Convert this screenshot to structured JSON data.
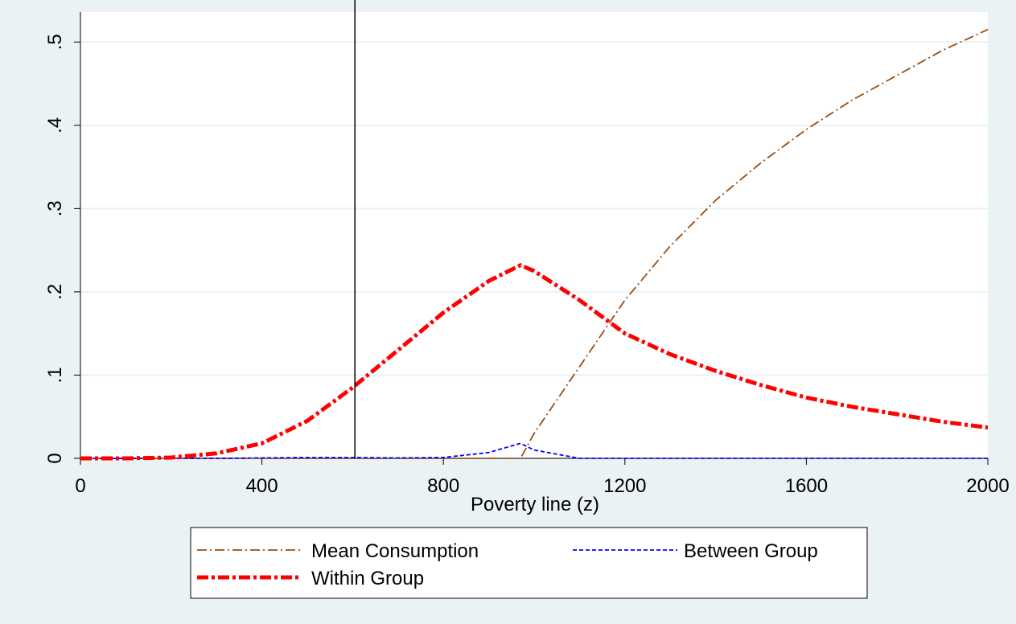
{
  "chart_data": {
    "type": "line",
    "x_label": "Poverty line (z)",
    "x": [
      0,
      100,
      200,
      300,
      400,
      500,
      600,
      700,
      800,
      900,
      970,
      1000,
      1100,
      1200,
      1300,
      1400,
      1500,
      1600,
      1700,
      1800,
      1900,
      2000
    ],
    "series": [
      {
        "name": "Mean Consumption",
        "color": "#9a4d10",
        "style": "dash-dot",
        "values": [
          0,
          0,
          0,
          0,
          0,
          0,
          0,
          0,
          0,
          0,
          0,
          0.03,
          0.11,
          0.19,
          0.255,
          0.31,
          0.355,
          0.395,
          0.43,
          0.46,
          0.49,
          0.515
        ]
      },
      {
        "name": "Between Group",
        "color": "#0000ff",
        "style": "dashed",
        "values": [
          0,
          0,
          0,
          0,
          0.0005,
          0.001,
          0.001,
          0.0005,
          0.001,
          0.007,
          0.018,
          0.01,
          0,
          0,
          0,
          0,
          0,
          0,
          0,
          0,
          0,
          0
        ]
      },
      {
        "name": "Within Group",
        "color": "#ff0000",
        "style": "thick-dash-dot",
        "values": [
          0,
          0,
          0.001,
          0.006,
          0.018,
          0.045,
          0.085,
          0.13,
          0.175,
          0.213,
          0.232,
          0.225,
          0.19,
          0.15,
          0.125,
          0.105,
          0.088,
          0.073,
          0.062,
          0.053,
          0.044,
          0.037
        ]
      }
    ],
    "xlim": [
      0,
      2000
    ],
    "xticks": [
      0,
      400,
      800,
      1200,
      1600,
      2000
    ],
    "ylim": [
      0,
      0.536
    ],
    "yticks": [
      0,
      {
        "value": 0.1,
        "label": ".1"
      },
      {
        "value": 0.2,
        "label": ".2"
      },
      {
        "value": 0.3,
        "label": ".3"
      },
      {
        "value": 0.4,
        "label": ".4"
      },
      {
        "value": 0.5,
        "label": ".5"
      }
    ],
    "xline": 605,
    "xline_color": "#000000",
    "grid": true,
    "legend_position": "bottom"
  }
}
